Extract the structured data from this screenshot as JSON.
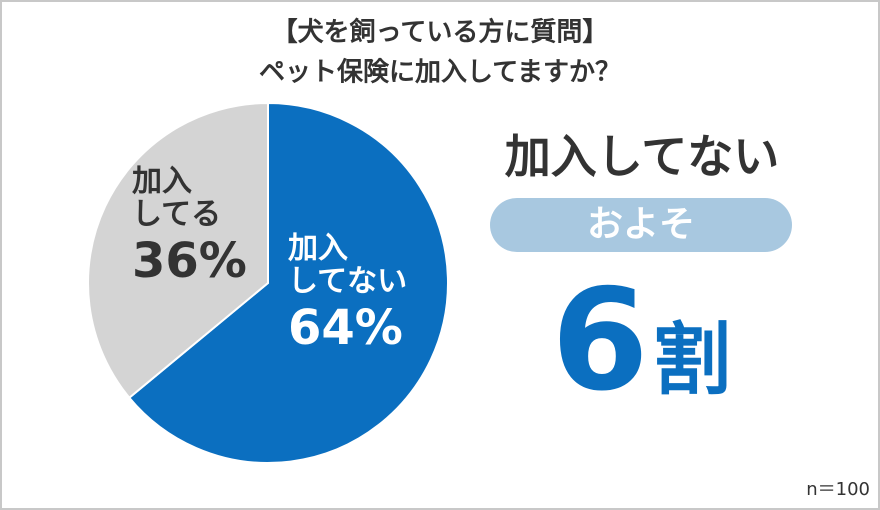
{
  "chart_data": {
    "type": "pie",
    "title": "【犬を飼っている方に質問】",
    "subtitle": "ペット保険に加入してますか？",
    "categories": [
      "加入\nしてない",
      "加入\nしてる"
    ],
    "values": [
      64,
      36
    ],
    "value_labels": [
      "64%",
      "36%"
    ],
    "colors": [
      "#0b6fc0",
      "#d4d4d4"
    ],
    "label_colors": [
      "#ffffff",
      "#333333"
    ],
    "headline": "加入してない",
    "callout_prefix": "およそ",
    "callout_number": "6",
    "callout_unit": "割",
    "note": "n＝100"
  }
}
